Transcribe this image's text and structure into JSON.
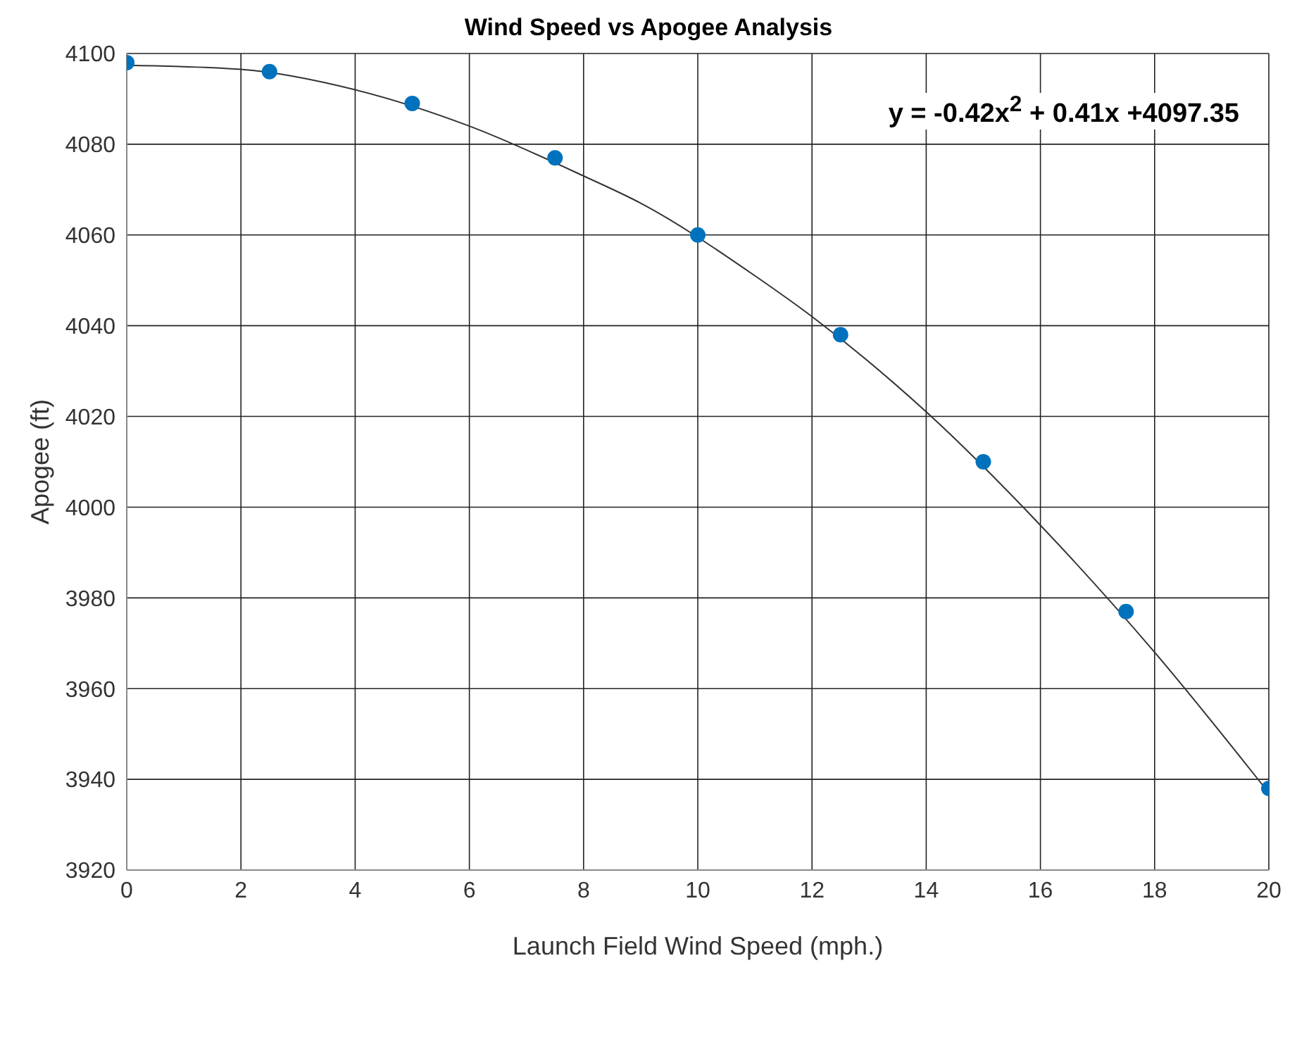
{
  "chart_data": {
    "type": "scatter",
    "title": "Wind Speed vs Apogee Analysis",
    "xlabel": "Launch Field Wind Speed (mph.)",
    "ylabel": "Apogee (ft)",
    "x": [
      0,
      2.5,
      5,
      7.5,
      10,
      12.5,
      15,
      17.5,
      20
    ],
    "series": [
      {
        "color": "#0072bd",
        "marker": "circle",
        "values": [
          4098,
          4096,
          4089,
          4077,
          4060,
          4038,
          4010,
          3977,
          3938
        ]
      },
      {
        "type": "line",
        "color": "#333333",
        "marker": "none",
        "line_style": "solid",
        "x": [
          0,
          2,
          4,
          6,
          8,
          9,
          11,
          12,
          14,
          16,
          18,
          20
        ],
        "values": [
          4097.4,
          4096.5,
          4092,
          4084,
          4073,
          4067,
          4051,
          4042,
          4021,
          3996,
          3968,
          3937
        ]
      }
    ],
    "xlim": [
      0,
      20
    ],
    "xticks": [
      0,
      2,
      4,
      6,
      8,
      10,
      12,
      14,
      16,
      18,
      20
    ],
    "ylim": [
      3920,
      4100
    ],
    "yticks": [
      3920,
      3940,
      3960,
      3980,
      4000,
      4020,
      4040,
      4060,
      4080,
      4100
    ],
    "grid": true,
    "legend": false,
    "annotations": [
      "y = -0.42x$^{2}$ + 0.41x +4097.35"
    ]
  }
}
